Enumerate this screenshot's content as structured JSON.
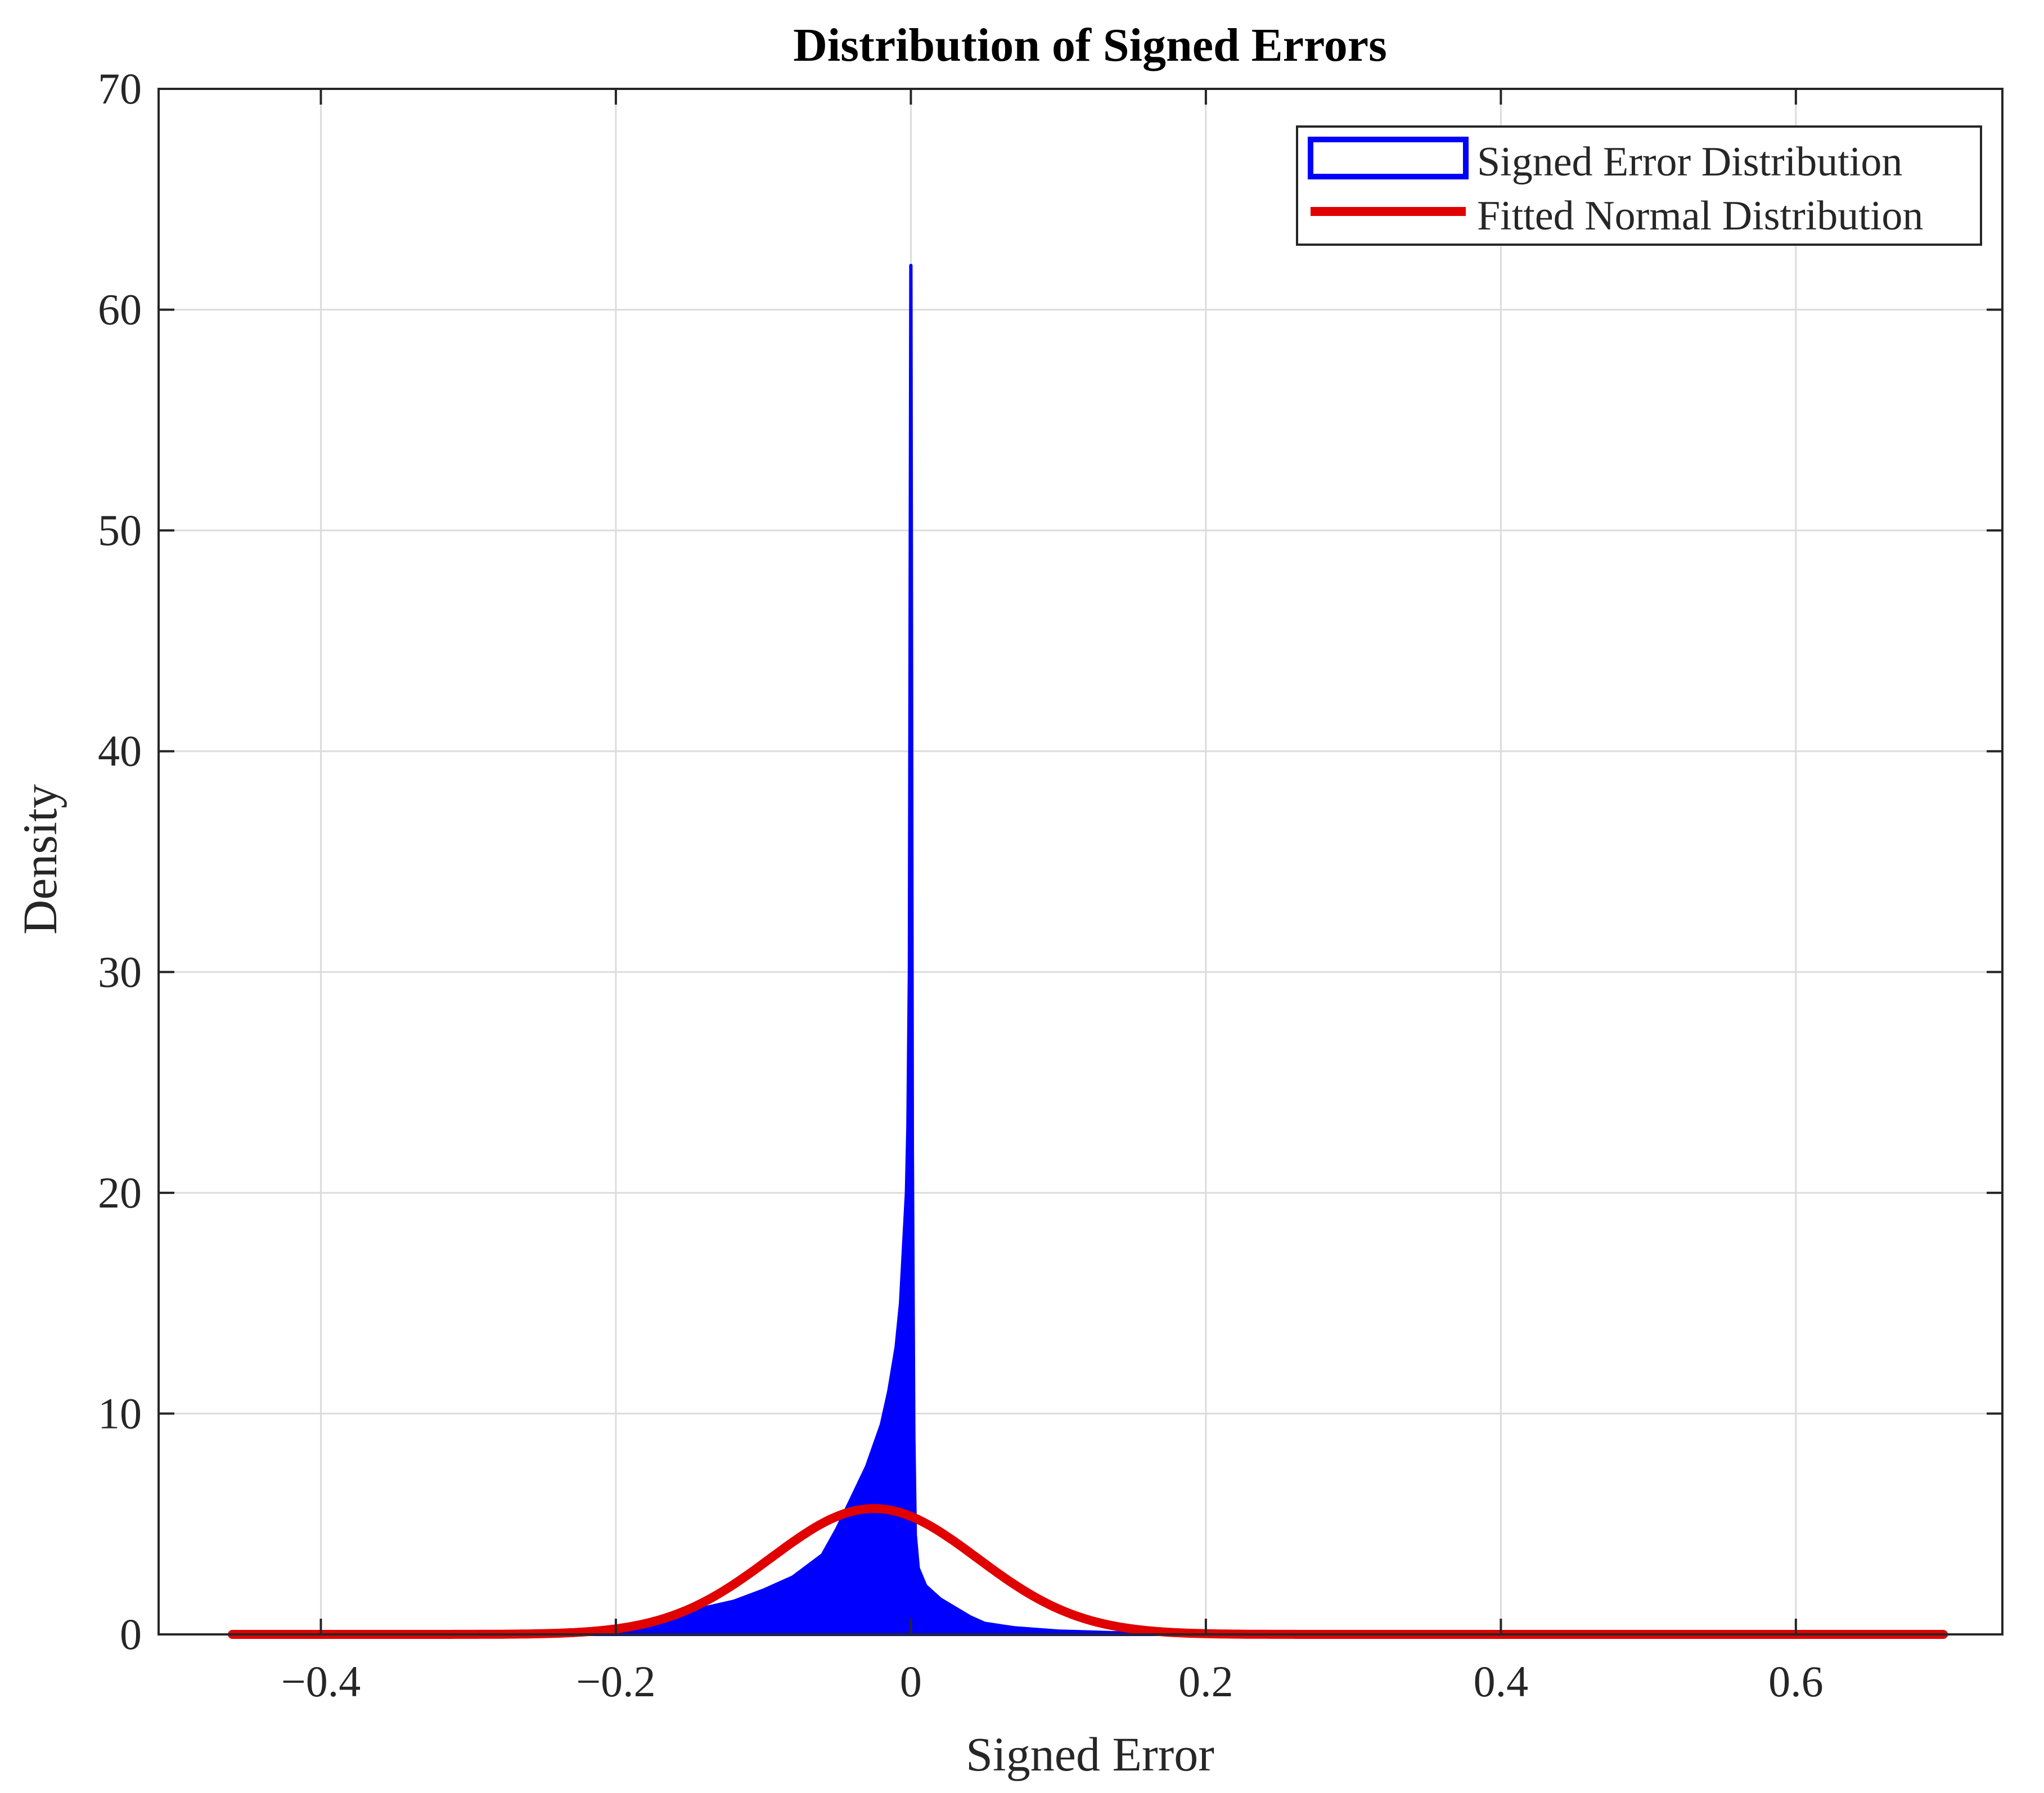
{
  "chart_data": {
    "type": "area",
    "title": "Distribution of Signed Errors",
    "xlabel": "Signed Error",
    "ylabel": "Density",
    "xlim": [
      -0.51,
      0.74
    ],
    "ylim": [
      0,
      70
    ],
    "xticks": [
      -0.4,
      -0.2,
      0,
      0.2,
      0.4,
      0.6
    ],
    "xtick_labels": [
      "−0.4",
      "−0.2",
      "0",
      "0.2",
      "0.4",
      "0.6"
    ],
    "yticks": [
      0,
      10,
      20,
      30,
      40,
      50,
      60,
      70
    ],
    "ytick_labels": [
      "0",
      "10",
      "20",
      "30",
      "40",
      "50",
      "60",
      "70"
    ],
    "grid": true,
    "legend_position": "top-right",
    "series": [
      {
        "name": "Signed Error Distribution",
        "kind": "histogram",
        "color": "#0000ff",
        "x": [
          -0.46,
          -0.3,
          -0.2,
          -0.18,
          -0.16,
          -0.14,
          -0.12,
          -0.1,
          -0.08,
          -0.06,
          -0.05,
          -0.04,
          -0.03,
          -0.02,
          -0.015,
          -0.01,
          -0.007,
          -0.005,
          -0.003,
          -0.002,
          -0.001,
          0,
          0.001,
          0.002,
          0.003,
          0.005,
          0.01,
          0.02,
          0.03,
          0.04,
          0.05,
          0.07,
          0.1,
          0.15,
          0.2,
          0.3,
          0.5,
          0.7
        ],
        "y": [
          0,
          0.02,
          0.1,
          0.3,
          0.8,
          1.2,
          1.5,
          2.0,
          2.6,
          3.6,
          4.8,
          6.2,
          7.6,
          9.5,
          11,
          13,
          15,
          17.5,
          20,
          23,
          30,
          62,
          22,
          9,
          4.5,
          3.0,
          2.2,
          1.6,
          1.2,
          0.8,
          0.5,
          0.3,
          0.15,
          0.05,
          0.02,
          0.01,
          0,
          0
        ]
      },
      {
        "name": "Fitted Normal Distribution",
        "kind": "line",
        "color": "#e00000",
        "distribution": "normal",
        "mean": -0.025,
        "std": 0.07,
        "peak": 5.7,
        "x_range": [
          -0.46,
          0.7
        ]
      }
    ]
  }
}
